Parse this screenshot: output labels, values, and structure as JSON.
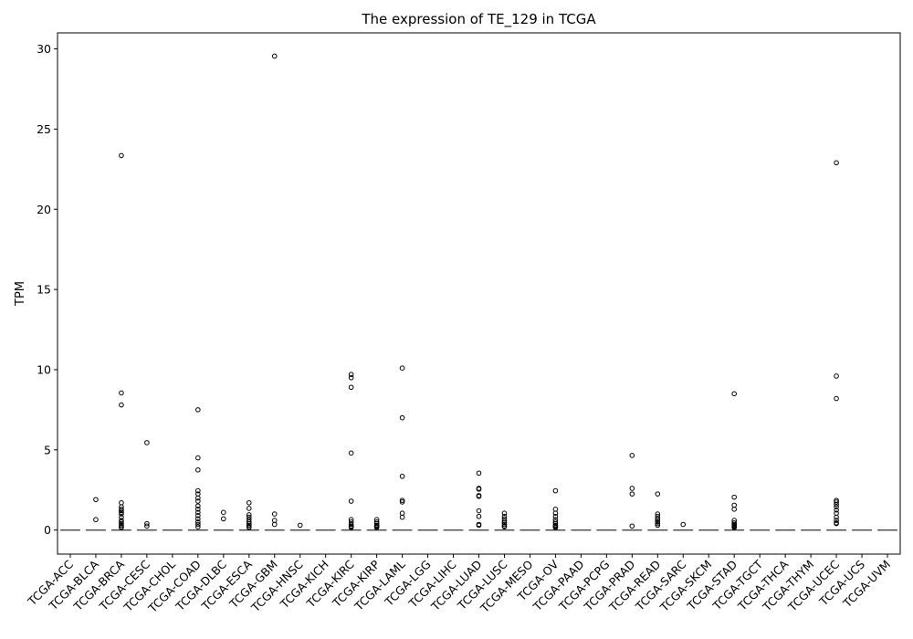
{
  "chart_data": {
    "type": "box",
    "title": "The expression of TE_129 in TCGA",
    "xlabel": "",
    "ylabel": "TPM",
    "ylim": [
      -1.5,
      31
    ],
    "yticks": [
      0,
      5,
      10,
      15,
      20,
      25,
      30
    ],
    "grid": false,
    "legend": "none",
    "categories": [
      "TCGA-ACC",
      "TCGA-BLCA",
      "TCGA-BRCA",
      "TCGA-CESC",
      "TCGA-CHOL",
      "TCGA-COAD",
      "TCGA-DLBC",
      "TCGA-ESCA",
      "TCGA-GBM",
      "TCGA-HNSC",
      "TCGA-KICH",
      "TCGA-KIRC",
      "TCGA-KIRP",
      "TCGA-LAML",
      "TCGA-LGG",
      "TCGA-LIHC",
      "TCGA-LUAD",
      "TCGA-LUSC",
      "TCGA-MESO",
      "TCGA-OV",
      "TCGA-PAAD",
      "TCGA-PCPG",
      "TCGA-PRAD",
      "TCGA-READ",
      "TCGA-SARC",
      "TCGA-SKCM",
      "TCGA-STAD",
      "TCGA-TGCT",
      "TCGA-THCA",
      "TCGA-THYM",
      "TCGA-UCEC",
      "TCGA-UCS",
      "TCGA-UVM"
    ],
    "median": [
      0,
      0,
      0,
      0,
      0,
      0,
      0,
      0,
      0,
      0,
      0,
      0,
      0,
      0,
      0,
      0,
      0,
      0,
      0,
      0,
      0,
      0,
      0,
      0,
      0,
      0,
      0,
      0,
      0,
      0,
      0,
      0,
      0
    ],
    "outliers": [
      [],
      [
        1.9,
        0.65
      ],
      [
        23.35,
        8.55,
        7.8,
        1.7,
        1.45,
        1.3,
        1.2,
        1.1,
        1.0,
        0.8,
        0.6,
        0.5,
        0.4,
        0.3,
        0.2,
        0.15
      ],
      [
        5.45,
        0.4,
        0.25
      ],
      [],
      [
        7.5,
        4.5,
        3.75,
        2.45,
        2.25,
        2.0,
        1.8,
        1.5,
        1.3,
        1.1,
        0.9,
        0.7,
        0.5,
        0.35,
        0.2
      ],
      [
        1.1,
        0.7
      ],
      [
        1.7,
        1.35,
        0.95,
        0.8,
        0.65,
        0.5,
        0.4,
        0.3,
        0.2,
        0.15
      ],
      [
        29.55,
        1.0,
        0.6,
        0.35
      ],
      [
        0.3
      ],
      [],
      [
        9.7,
        9.5,
        8.9,
        4.8,
        1.8,
        0.65,
        0.5,
        0.35,
        0.25,
        0.2,
        0.15
      ],
      [
        0.65,
        0.5,
        0.4,
        0.3,
        0.25,
        0.2,
        0.15
      ],
      [
        10.1,
        7.0,
        3.35,
        1.85,
        1.75,
        1.05,
        0.8
      ],
      [],
      [],
      [
        3.55,
        2.6,
        2.55,
        2.15,
        2.1,
        1.2,
        0.85,
        0.35,
        0.3
      ],
      [
        1.05,
        0.85,
        0.7,
        0.55,
        0.45,
        0.35,
        0.25,
        0.2
      ],
      [],
      [
        2.45,
        1.3,
        1.05,
        0.85,
        0.65,
        0.5,
        0.4,
        0.3,
        0.25,
        0.2,
        0.15
      ],
      [],
      [],
      [
        4.65,
        2.6,
        2.25,
        0.25
      ],
      [
        2.25,
        1.0,
        0.85,
        0.7,
        0.6,
        0.5,
        0.4,
        0.3
      ],
      [
        0.35
      ],
      [],
      [
        8.5,
        2.05,
        1.55,
        1.3,
        0.6,
        0.45,
        0.35,
        0.3,
        0.25,
        0.2,
        0.15
      ],
      [],
      [],
      [],
      [
        22.9,
        9.6,
        8.2,
        1.85,
        1.75,
        1.6,
        1.45,
        1.25,
        1.05,
        0.8,
        0.6,
        0.45,
        0.4
      ],
      [],
      []
    ]
  }
}
